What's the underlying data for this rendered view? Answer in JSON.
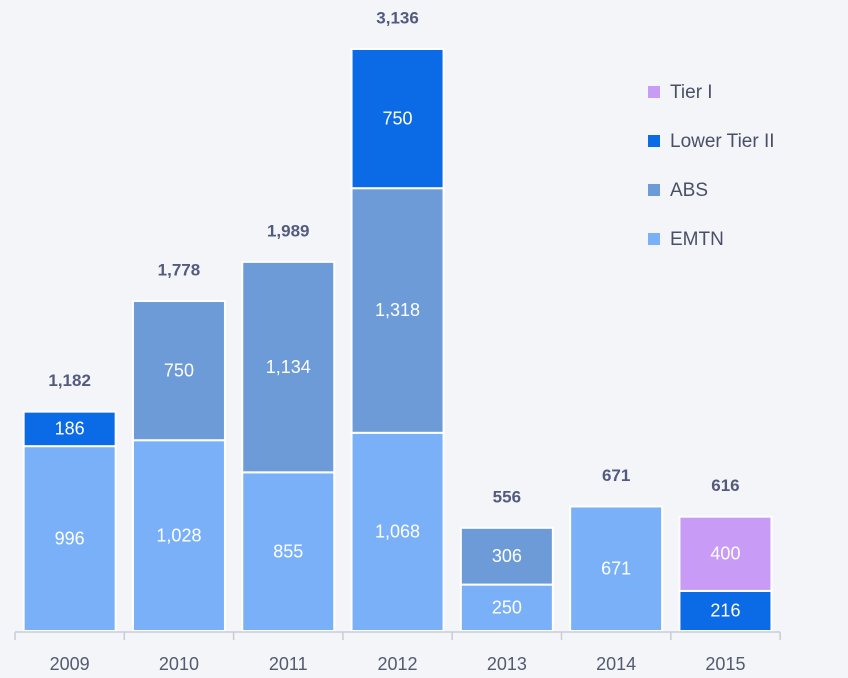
{
  "chart_data": {
    "type": "stacked_bar",
    "categories": [
      "2009",
      "2010",
      "2011",
      "2012",
      "2013",
      "2014",
      "2015"
    ],
    "series": [
      {
        "name": "EMTN",
        "color": "#7ab0f8",
        "values": [
          996,
          1028,
          855,
          1068,
          250,
          671,
          null
        ],
        "value_labels": [
          "996",
          "1,028",
          "855",
          "1,068",
          "250",
          "671",
          null
        ]
      },
      {
        "name": "ABS",
        "color": "#6c9bd8",
        "values": [
          null,
          750,
          1134,
          1318,
          306,
          null,
          null
        ],
        "value_labels": [
          null,
          "750",
          "1,134",
          "1,318",
          "306",
          null,
          null
        ]
      },
      {
        "name": "Lower Tier II",
        "color": "#0b6ae6",
        "values": [
          186,
          null,
          null,
          750,
          null,
          null,
          216
        ],
        "value_labels": [
          "186",
          null,
          null,
          "750",
          null,
          null,
          "216"
        ]
      },
      {
        "name": "Tier I",
        "color": "#c79bf6",
        "values": [
          null,
          null,
          null,
          null,
          null,
          null,
          400
        ],
        "value_labels": [
          null,
          null,
          null,
          null,
          null,
          null,
          "400"
        ]
      }
    ],
    "totals": {
      "values": [
        1182,
        1778,
        1989,
        3136,
        556,
        671,
        616
      ],
      "value_labels": [
        "1,182",
        "1,778",
        "1,989",
        "3,136",
        "556",
        "671",
        "616"
      ]
    },
    "legend": "top-right"
  }
}
